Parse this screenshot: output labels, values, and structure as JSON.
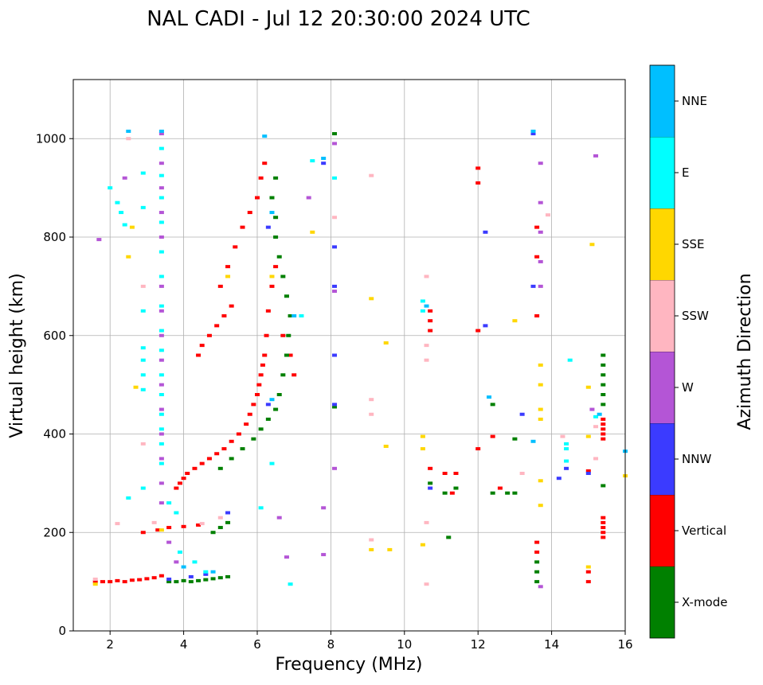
{
  "chart_data": {
    "type": "scatter",
    "title": "NAL CADI - Jul 12 20:30:00 2024 UTC",
    "xlabel": "Frequency (MHz)",
    "ylabel": "Virtual height (km)",
    "xlim": [
      1,
      16
    ],
    "ylim": [
      0,
      1120
    ],
    "xticks": [
      2,
      4,
      6,
      8,
      10,
      12,
      14,
      16
    ],
    "yticks": [
      0,
      200,
      400,
      600,
      800,
      1000
    ],
    "grid": true,
    "colorbar": {
      "label": "Azimuth Direction",
      "categories": [
        {
          "name": "X-mode",
          "color": "#008000"
        },
        {
          "name": "Vertical",
          "color": "#ff0000"
        },
        {
          "name": "NNW",
          "color": "#3b3bff"
        },
        {
          "name": "W",
          "color": "#b455d6"
        },
        {
          "name": "SSW",
          "color": "#ffb6c1"
        },
        {
          "name": "SSE",
          "color": "#ffd700"
        },
        {
          "name": "E",
          "color": "#00ffff"
        },
        {
          "name": "NNE",
          "color": "#00bfff"
        }
      ]
    },
    "series": [
      {
        "name": "Vertical",
        "points": [
          [
            1.6,
            100
          ],
          [
            1.8,
            100
          ],
          [
            2.0,
            100
          ],
          [
            2.2,
            102
          ],
          [
            2.4,
            100
          ],
          [
            2.6,
            103
          ],
          [
            2.8,
            104
          ],
          [
            3.0,
            106
          ],
          [
            3.2,
            108
          ],
          [
            3.4,
            112
          ],
          [
            2.9,
            200
          ],
          [
            3.3,
            205
          ],
          [
            3.6,
            210
          ],
          [
            4.0,
            212
          ],
          [
            4.4,
            215
          ],
          [
            3.8,
            290
          ],
          [
            3.9,
            300
          ],
          [
            4.0,
            310
          ],
          [
            4.1,
            320
          ],
          [
            4.3,
            330
          ],
          [
            4.5,
            340
          ],
          [
            4.7,
            350
          ],
          [
            4.9,
            360
          ],
          [
            5.1,
            370
          ],
          [
            5.3,
            385
          ],
          [
            5.5,
            400
          ],
          [
            5.7,
            420
          ],
          [
            5.8,
            440
          ],
          [
            5.9,
            460
          ],
          [
            6.0,
            480
          ],
          [
            6.05,
            500
          ],
          [
            6.1,
            520
          ],
          [
            6.15,
            540
          ],
          [
            6.2,
            560
          ],
          [
            6.25,
            600
          ],
          [
            6.3,
            650
          ],
          [
            6.4,
            700
          ],
          [
            6.5,
            740
          ],
          [
            4.4,
            560
          ],
          [
            4.5,
            580
          ],
          [
            4.7,
            600
          ],
          [
            4.9,
            620
          ],
          [
            5.1,
            640
          ],
          [
            5.3,
            660
          ],
          [
            5.0,
            700
          ],
          [
            5.2,
            740
          ],
          [
            5.4,
            780
          ],
          [
            5.6,
            820
          ],
          [
            5.8,
            850
          ],
          [
            6.0,
            880
          ],
          [
            6.1,
            920
          ],
          [
            6.2,
            950
          ],
          [
            6.7,
            600
          ],
          [
            6.9,
            560
          ],
          [
            7.0,
            520
          ],
          [
            11.1,
            320
          ],
          [
            11.3,
            280
          ],
          [
            11.4,
            320
          ],
          [
            12.0,
            370
          ],
          [
            12.0,
            610
          ],
          [
            12.0,
            910
          ],
          [
            12.0,
            940
          ],
          [
            12.4,
            395
          ],
          [
            12.6,
            290
          ],
          [
            13.6,
            180
          ],
          [
            13.6,
            160
          ],
          [
            13.6,
            640
          ],
          [
            13.6,
            760
          ],
          [
            13.6,
            820
          ],
          [
            15.0,
            100
          ],
          [
            15.0,
            120
          ],
          [
            15.0,
            325
          ],
          [
            15.4,
            190
          ],
          [
            15.4,
            200
          ],
          [
            15.4,
            210
          ],
          [
            15.4,
            220
          ],
          [
            15.4,
            230
          ],
          [
            15.4,
            390
          ],
          [
            15.4,
            400
          ],
          [
            15.4,
            410
          ],
          [
            15.4,
            420
          ],
          [
            15.4,
            430
          ],
          [
            10.7,
            630
          ],
          [
            10.7,
            650
          ],
          [
            10.7,
            610
          ],
          [
            10.7,
            330
          ]
        ]
      },
      {
        "name": "X-mode",
        "points": [
          [
            3.6,
            100
          ],
          [
            3.8,
            100
          ],
          [
            4.0,
            102
          ],
          [
            4.2,
            100
          ],
          [
            4.4,
            102
          ],
          [
            4.6,
            104
          ],
          [
            4.8,
            106
          ],
          [
            5.0,
            108
          ],
          [
            5.2,
            110
          ],
          [
            4.8,
            200
          ],
          [
            5.0,
            210
          ],
          [
            5.2,
            220
          ],
          [
            5.0,
            330
          ],
          [
            5.3,
            350
          ],
          [
            5.6,
            370
          ],
          [
            5.9,
            390
          ],
          [
            6.1,
            410
          ],
          [
            6.3,
            430
          ],
          [
            6.5,
            450
          ],
          [
            6.6,
            480
          ],
          [
            6.7,
            520
          ],
          [
            6.8,
            560
          ],
          [
            6.85,
            600
          ],
          [
            6.9,
            640
          ],
          [
            6.8,
            680
          ],
          [
            6.7,
            720
          ],
          [
            6.6,
            760
          ],
          [
            6.5,
            800
          ],
          [
            6.5,
            840
          ],
          [
            6.4,
            880
          ],
          [
            6.5,
            920
          ],
          [
            12.4,
            460
          ],
          [
            12.4,
            280
          ],
          [
            12.8,
            280
          ],
          [
            13.0,
            390
          ],
          [
            13.0,
            280
          ],
          [
            13.6,
            100
          ],
          [
            13.6,
            120
          ],
          [
            13.6,
            140
          ],
          [
            15.4,
            460
          ],
          [
            15.4,
            480
          ],
          [
            15.4,
            500
          ],
          [
            15.4,
            520
          ],
          [
            15.4,
            540
          ],
          [
            15.4,
            560
          ],
          [
            15.4,
            295
          ],
          [
            11.4,
            290
          ],
          [
            11.1,
            280
          ],
          [
            10.7,
            300
          ],
          [
            8.1,
            1010
          ],
          [
            8.1,
            455
          ],
          [
            11.2,
            190
          ]
        ]
      },
      {
        "name": "NNW",
        "points": [
          [
            3.6,
            105
          ],
          [
            4.2,
            110
          ],
          [
            4.6,
            115
          ],
          [
            5.2,
            240
          ],
          [
            6.3,
            460
          ],
          [
            6.3,
            820
          ],
          [
            7.8,
            950
          ],
          [
            8.1,
            780
          ],
          [
            8.1,
            700
          ],
          [
            8.1,
            560
          ],
          [
            8.1,
            460
          ],
          [
            12.2,
            810
          ],
          [
            12.2,
            620
          ],
          [
            13.2,
            440
          ],
          [
            13.5,
            700
          ],
          [
            13.5,
            1010
          ],
          [
            14.2,
            310
          ],
          [
            14.4,
            330
          ],
          [
            15.0,
            320
          ],
          [
            10.7,
            290
          ]
        ]
      },
      {
        "name": "W",
        "points": [
          [
            1.7,
            795
          ],
          [
            2.4,
            920
          ],
          [
            3.4,
            1010
          ],
          [
            3.4,
            950
          ],
          [
            3.4,
            900
          ],
          [
            3.4,
            850
          ],
          [
            3.4,
            800
          ],
          [
            3.4,
            700
          ],
          [
            3.4,
            650
          ],
          [
            3.4,
            600
          ],
          [
            3.4,
            550
          ],
          [
            3.4,
            500
          ],
          [
            3.4,
            450
          ],
          [
            3.4,
            400
          ],
          [
            3.4,
            350
          ],
          [
            3.4,
            300
          ],
          [
            3.4,
            260
          ],
          [
            3.6,
            180
          ],
          [
            3.8,
            140
          ],
          [
            6.6,
            230
          ],
          [
            6.8,
            150
          ],
          [
            7.4,
            880
          ],
          [
            7.8,
            250
          ],
          [
            7.8,
            155
          ],
          [
            8.1,
            990
          ],
          [
            8.1,
            330
          ],
          [
            8.1,
            690
          ],
          [
            13.7,
            950
          ],
          [
            13.7,
            870
          ],
          [
            13.7,
            810
          ],
          [
            13.7,
            750
          ],
          [
            13.7,
            700
          ],
          [
            13.7,
            90
          ],
          [
            15.2,
            965
          ],
          [
            15.1,
            450
          ]
        ]
      },
      {
        "name": "SSW",
        "points": [
          [
            1.6,
            105
          ],
          [
            2.2,
            218
          ],
          [
            2.5,
            1000
          ],
          [
            2.9,
            700
          ],
          [
            2.9,
            380
          ],
          [
            3.2,
            220
          ],
          [
            4.5,
            218
          ],
          [
            5.0,
            230
          ],
          [
            9.1,
            925
          ],
          [
            9.1,
            470
          ],
          [
            9.1,
            440
          ],
          [
            9.1,
            185
          ],
          [
            10.6,
            720
          ],
          [
            10.6,
            580
          ],
          [
            10.6,
            550
          ],
          [
            10.6,
            220
          ],
          [
            10.6,
            95
          ],
          [
            13.9,
            845
          ],
          [
            14.3,
            395
          ],
          [
            15.2,
            415
          ],
          [
            15.2,
            350
          ],
          [
            13.2,
            320
          ],
          [
            8.1,
            840
          ]
        ]
      },
      {
        "name": "SSE",
        "points": [
          [
            1.6,
            95
          ],
          [
            2.5,
            760
          ],
          [
            2.6,
            820
          ],
          [
            2.7,
            495
          ],
          [
            3.4,
            205
          ],
          [
            5.2,
            720
          ],
          [
            6.4,
            720
          ],
          [
            7.5,
            810
          ],
          [
            9.1,
            675
          ],
          [
            9.1,
            165
          ],
          [
            9.5,
            585
          ],
          [
            9.5,
            375
          ],
          [
            9.6,
            165
          ],
          [
            10.5,
            395
          ],
          [
            10.5,
            370
          ],
          [
            10.5,
            175
          ],
          [
            13.0,
            630
          ],
          [
            13.7,
            540
          ],
          [
            13.7,
            500
          ],
          [
            13.7,
            450
          ],
          [
            13.7,
            430
          ],
          [
            13.7,
            305
          ],
          [
            13.7,
            255
          ],
          [
            15.1,
            785
          ],
          [
            15.0,
            495
          ],
          [
            15.0,
            395
          ],
          [
            15.0,
            130
          ],
          [
            16.0,
            315
          ]
        ]
      },
      {
        "name": "E",
        "points": [
          [
            2.0,
            900
          ],
          [
            2.2,
            870
          ],
          [
            2.3,
            850
          ],
          [
            2.4,
            825
          ],
          [
            2.5,
            270
          ],
          [
            2.9,
            930
          ],
          [
            2.9,
            860
          ],
          [
            2.9,
            650
          ],
          [
            2.9,
            575
          ],
          [
            2.9,
            550
          ],
          [
            2.9,
            520
          ],
          [
            2.9,
            490
          ],
          [
            2.9,
            290
          ],
          [
            3.4,
            980
          ],
          [
            3.4,
            925
          ],
          [
            3.4,
            880
          ],
          [
            3.4,
            830
          ],
          [
            3.4,
            770
          ],
          [
            3.4,
            720
          ],
          [
            3.4,
            660
          ],
          [
            3.4,
            610
          ],
          [
            3.4,
            570
          ],
          [
            3.4,
            520
          ],
          [
            3.4,
            480
          ],
          [
            3.4,
            440
          ],
          [
            3.4,
            410
          ],
          [
            3.4,
            380
          ],
          [
            3.4,
            340
          ],
          [
            3.6,
            260
          ],
          [
            3.8,
            240
          ],
          [
            3.9,
            160
          ],
          [
            4.3,
            140
          ],
          [
            4.6,
            120
          ],
          [
            6.1,
            250
          ],
          [
            6.4,
            340
          ],
          [
            6.9,
            95
          ],
          [
            7.2,
            640
          ],
          [
            7.5,
            955
          ],
          [
            8.1,
            920
          ],
          [
            10.5,
            670
          ],
          [
            10.5,
            650
          ],
          [
            14.4,
            345
          ],
          [
            14.4,
            370
          ],
          [
            14.4,
            380
          ],
          [
            14.5,
            550
          ],
          [
            15.2,
            435
          ]
        ]
      },
      {
        "name": "NNE",
        "points": [
          [
            2.5,
            1015
          ],
          [
            3.4,
            1015
          ],
          [
            4.0,
            130
          ],
          [
            4.8,
            120
          ],
          [
            6.2,
            1005
          ],
          [
            6.4,
            470
          ],
          [
            6.4,
            850
          ],
          [
            7.0,
            640
          ],
          [
            7.8,
            960
          ],
          [
            10.6,
            660
          ],
          [
            12.3,
            475
          ],
          [
            13.5,
            1015
          ],
          [
            13.5,
            385
          ],
          [
            15.3,
            440
          ],
          [
            16.0,
            365
          ]
        ]
      }
    ]
  }
}
